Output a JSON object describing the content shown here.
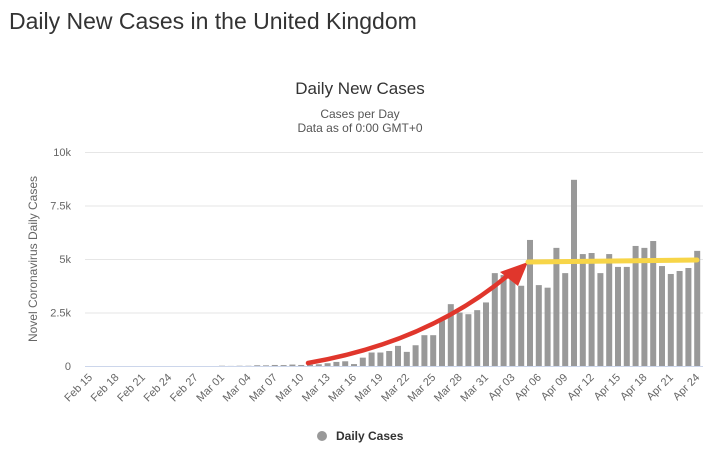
{
  "page_title": "Daily New Cases in the United Kingdom",
  "chart_data": {
    "type": "bar",
    "title": "Daily New Cases",
    "subtitle": [
      "Cases per Day",
      "Data as of 0:00 GMT+0"
    ],
    "ylabel": "Novel Coronavirus Daily Cases",
    "xlabel": "",
    "ylim": [
      0,
      10000
    ],
    "yticks": [
      0,
      2500,
      5000,
      7500,
      10000
    ],
    "ytick_labels": [
      "0",
      "2.5k",
      "5k",
      "7.5k",
      "10k"
    ],
    "grid": true,
    "legend": {
      "position": "bottom-center",
      "entries": [
        "Daily Cases"
      ]
    },
    "colors": {
      "bars": "#999999",
      "arrow": "#e0362c",
      "plateau": "#f7d548"
    },
    "start_date": "Feb 15",
    "x_tick_labels": [
      "Feb 15",
      "Feb 18",
      "Feb 21",
      "Feb 24",
      "Feb 27",
      "Mar 01",
      "Mar 04",
      "Mar 07",
      "Mar 10",
      "Mar 13",
      "Mar 16",
      "Mar 19",
      "Mar 22",
      "Mar 25",
      "Mar 28",
      "Mar 31",
      "Apr 03",
      "Apr 06",
      "Apr 09",
      "Apr 12",
      "Apr 15",
      "Apr 18",
      "Apr 21",
      "Apr 24"
    ],
    "series": [
      {
        "name": "Daily Cases",
        "values": [
          0,
          0,
          0,
          0,
          0,
          0,
          0,
          0,
          0,
          0,
          0,
          0,
          0,
          0,
          0,
          12,
          4,
          12,
          11,
          34,
          30,
          48,
          43,
          67,
          48,
          61,
          80,
          130,
          190,
          220,
          90,
          390,
          630,
          630,
          700,
          940,
          660,
          970,
          1440,
          1440,
          2140,
          2890,
          2500,
          2420,
          2610,
          2970,
          4340,
          4250,
          4450,
          3750,
          5890,
          3780,
          3660,
          5520,
          4340,
          8700,
          5230,
          5280,
          4340,
          5230,
          4630,
          4630,
          5610,
          5520,
          5840,
          4670,
          4300,
          4440,
          4580,
          5380
        ]
      }
    ]
  }
}
